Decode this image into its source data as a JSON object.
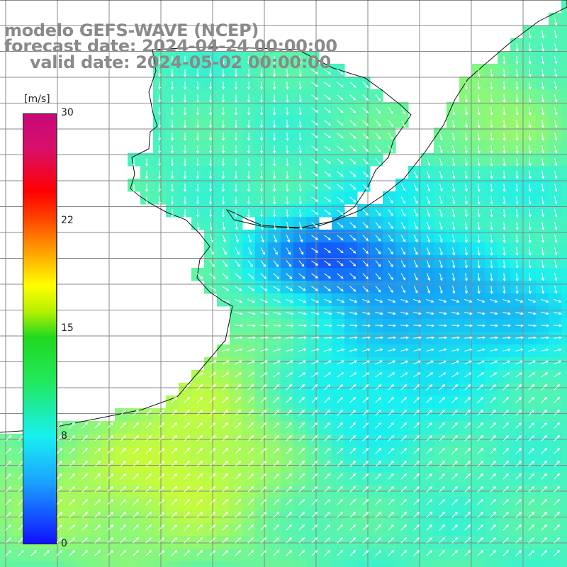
{
  "title": {
    "line1": "modelo GEFS-WAVE (NCEP)",
    "line2": "forecast date: 2024-04-24 00:00:00",
    "line3": "valid date: 2024-05-02 00:00:00"
  },
  "colorbar": {
    "unit": "[m/s]",
    "ticks": [
      "30",
      "22",
      "15",
      "8",
      "0"
    ],
    "stops": [
      {
        "value": 0,
        "color": "#1010ff"
      },
      {
        "value": 8,
        "color": "#18f0f0"
      },
      {
        "value": 15,
        "color": "#ffff00"
      },
      {
        "value": 22,
        "color": "#ff4000"
      },
      {
        "value": 30,
        "color": "#c8087a"
      }
    ]
  },
  "map": {
    "land_color": "#ffffff",
    "grid_color": "#888888",
    "vector_color": "#ffffff"
  }
}
